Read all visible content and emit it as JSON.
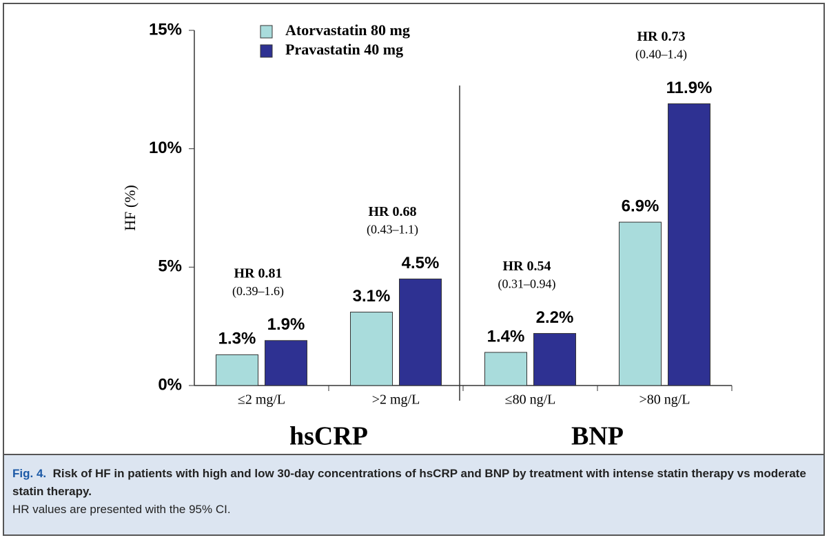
{
  "chart_data": {
    "type": "bar",
    "y_label": "HF (%)",
    "categories": [
      "≤2 mg/L",
      ">2 mg/L",
      "≤80 ng/L",
      ">80 ng/L"
    ],
    "groups": [
      "hsCRP",
      "BNP"
    ],
    "series": [
      {
        "name": "Atorvastatin 80 mg",
        "color": "#a9dcdc",
        "values": [
          1.3,
          3.1,
          1.4,
          6.9
        ],
        "value_labels": [
          "1.3%",
          "3.1%",
          "1.4%",
          "6.9%"
        ]
      },
      {
        "name": "Pravastatin 40 mg",
        "color": "#2e3192",
        "values": [
          1.9,
          4.5,
          2.2,
          11.9
        ],
        "value_labels": [
          "1.9%",
          "4.5%",
          "2.2%",
          "11.9%"
        ]
      }
    ],
    "annotations": {
      "hr": [
        "HR 0.81",
        "HR 0.68",
        "HR 0.54",
        "HR 0.73"
      ],
      "ci": [
        "(0.39–1.6)",
        "(0.43–1.1)",
        "(0.31–0.94)",
        "(0.40–1.4)"
      ]
    },
    "ylim": [
      0,
      15
    ],
    "yticks": [
      {
        "value": 0,
        "label": "0%"
      },
      {
        "value": 5,
        "label": "5%"
      },
      {
        "value": 10,
        "label": "10%"
      },
      {
        "value": 15,
        "label": "15%"
      }
    ],
    "grid": false
  },
  "caption": {
    "label": "Fig. 4.",
    "title": "Risk of HF in patients with high and low 30-day concentrations of hsCRP and BNP by treatment with intense statin therapy vs moderate statin therapy.",
    "note": "HR values are presented with the 95% CI."
  }
}
